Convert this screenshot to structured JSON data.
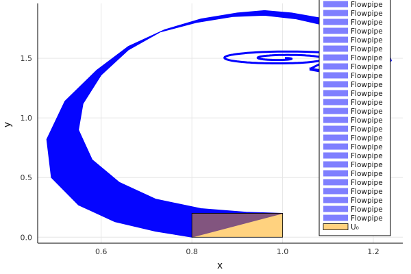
{
  "chart_data": {
    "type": "area",
    "xlabel": "x",
    "ylabel": "y",
    "xlim": [
      0.46,
      1.265
    ],
    "ylim": [
      -0.05,
      1.96
    ],
    "xticks": [
      "0.6",
      "0.8",
      "1.0",
      "1.2"
    ],
    "yticks": [
      "0.0",
      "0.5",
      "1.0",
      "1.5"
    ],
    "grid": true,
    "legend_position": "top-right",
    "flowpipe_color": "#0000ff",
    "initial_set_color": "#ffa500",
    "flowpipe_series_name": "Flowpipe",
    "flowpipe_legend_entries": 25,
    "initial_set": {
      "name": "U₀",
      "x": [
        0.8,
        1.0
      ],
      "y": [
        0.0,
        0.2
      ]
    },
    "flowpipe_outer_boundary": [
      [
        0.8,
        0.0
      ],
      [
        0.72,
        0.05
      ],
      [
        0.63,
        0.13
      ],
      [
        0.55,
        0.27
      ],
      [
        0.49,
        0.5
      ],
      [
        0.48,
        0.82
      ],
      [
        0.52,
        1.14
      ],
      [
        0.59,
        1.4
      ],
      [
        0.66,
        1.6
      ],
      [
        0.74,
        1.74
      ],
      [
        0.82,
        1.83
      ],
      [
        0.9,
        1.88
      ],
      [
        0.96,
        1.9
      ],
      [
        1.02,
        1.88
      ],
      [
        1.08,
        1.84
      ],
      [
        1.14,
        1.78
      ],
      [
        1.2,
        1.69
      ],
      [
        1.23,
        1.6
      ],
      [
        1.24,
        1.48
      ],
      [
        1.22,
        1.4
      ],
      [
        1.18,
        1.36
      ],
      [
        1.12,
        1.36
      ],
      [
        1.06,
        1.4
      ]
    ],
    "flowpipe_inner_boundary": [
      [
        1.06,
        1.42
      ],
      [
        1.12,
        1.38
      ],
      [
        1.17,
        1.38
      ],
      [
        1.21,
        1.42
      ],
      [
        1.22,
        1.5
      ],
      [
        1.2,
        1.6
      ],
      [
        1.16,
        1.7
      ],
      [
        1.1,
        1.77
      ],
      [
        1.03,
        1.83
      ],
      [
        0.96,
        1.86
      ],
      [
        0.89,
        1.85
      ],
      [
        0.81,
        1.8
      ],
      [
        0.73,
        1.72
      ],
      [
        0.66,
        1.57
      ],
      [
        0.6,
        1.36
      ],
      [
        0.56,
        1.12
      ],
      [
        0.55,
        0.9
      ],
      [
        0.58,
        0.65
      ],
      [
        0.64,
        0.46
      ],
      [
        0.72,
        0.32
      ],
      [
        0.82,
        0.24
      ],
      [
        0.92,
        0.21
      ],
      [
        1.0,
        0.2
      ]
    ],
    "spiral_center": [
      1.0,
      1.5
    ]
  }
}
